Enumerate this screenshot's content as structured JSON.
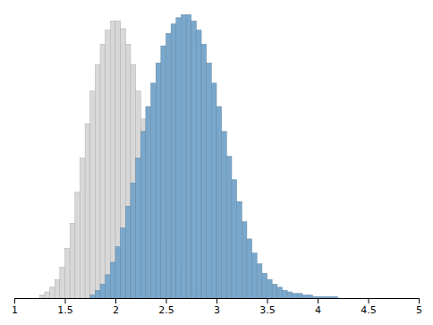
{
  "chart_data": {
    "type": "histogram",
    "bins": [
      1,
      1.05,
      1.1,
      1.15,
      1.2,
      1.25,
      1.3,
      1.35,
      1.4,
      1.45,
      1.5,
      1.55,
      1.6,
      1.65,
      1.7,
      1.75,
      1.8,
      1.85,
      1.9,
      1.95,
      2,
      2.05,
      2.1,
      2.15,
      2.2,
      2.25,
      2.3,
      2.35,
      2.4,
      2.45,
      2.5,
      2.55,
      2.6,
      2.65,
      2.7,
      2.75,
      2.8,
      2.85,
      2.9,
      2.95,
      3,
      3.05,
      3.1,
      3.15,
      3.2,
      3.25,
      3.3,
      3.35,
      3.4,
      3.45,
      3.5,
      3.55,
      3.6,
      3.65,
      3.7,
      3.75,
      3.8,
      3.85,
      3.9,
      3.95,
      4,
      4.05,
      4.1,
      4.15,
      4.2,
      4.25,
      4.3,
      4.35,
      4.4,
      4.45,
      4.5,
      4.55,
      4.6,
      4.65,
      4.7,
      4.75,
      4.8,
      4.85,
      4.9,
      4.95,
      5
    ],
    "series": [
      {
        "color": "#d8d8d8",
        "values": [
          0,
          0,
          0,
          0,
          0,
          2,
          4,
          7,
          12,
          20,
          32,
          48,
          68,
          90,
          112,
          133,
          150,
          163,
          172,
          178,
          178,
          173,
          163,
          150,
          133,
          115,
          96,
          78,
          62,
          48,
          36,
          27,
          19,
          13,
          9,
          6,
          4,
          3,
          2,
          1,
          1,
          0,
          0,
          0,
          0,
          0,
          0,
          0,
          0,
          0,
          0,
          0,
          0,
          0,
          0,
          0,
          0,
          0,
          0,
          0,
          0,
          0,
          0,
          0,
          0,
          0,
          0,
          0,
          0,
          0,
          0,
          0,
          0,
          0,
          0,
          0,
          0,
          0,
          0,
          0
        ]
      },
      {
        "color": "#7aa8cc",
        "values": [
          0,
          0,
          0,
          0,
          0,
          0,
          0,
          0,
          0,
          0,
          0,
          0,
          0,
          0,
          0,
          2,
          5,
          9,
          15,
          23,
          33,
          45,
          59,
          74,
          90,
          107,
          123,
          138,
          151,
          162,
          170,
          176,
          180,
          182,
          182,
          178,
          172,
          163,
          151,
          138,
          123,
          107,
          91,
          76,
          62,
          49,
          38,
          29,
          22,
          16,
          12,
          9,
          7,
          5,
          4,
          3,
          3,
          2,
          2,
          1,
          1,
          1,
          1,
          1,
          0,
          0,
          0,
          0,
          0,
          0,
          0,
          0,
          0,
          0,
          0,
          0,
          0,
          0,
          0,
          0
        ]
      }
    ],
    "xlim": [
      1.0,
      5.0
    ],
    "xticks": [
      1,
      1.5,
      2,
      2.5,
      3,
      3.5,
      4,
      4.5,
      5
    ],
    "ylim": [
      0,
      185.64
    ],
    "tick_labels": "x"
  }
}
